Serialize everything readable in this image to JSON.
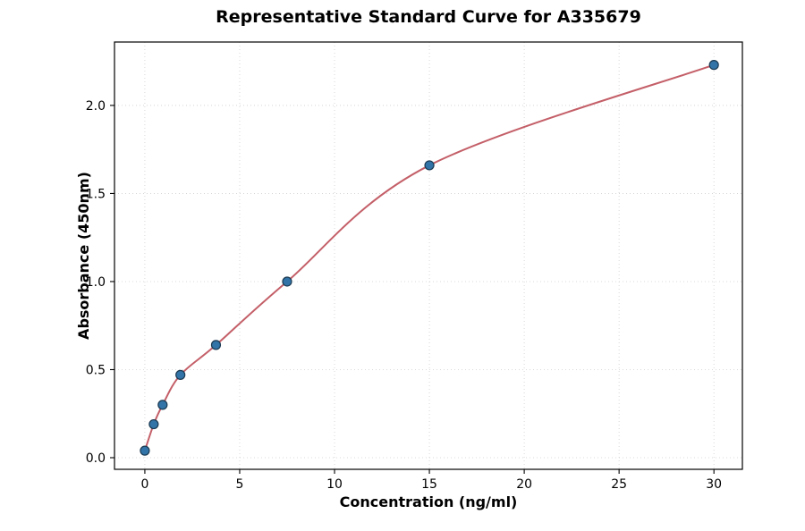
{
  "chart_data": {
    "type": "scatter",
    "title": "Representative Standard Curve for A335679",
    "xlabel": "Concentration (ng/ml)",
    "ylabel": "Absorbance (450nm)",
    "x": [
      0,
      0.469,
      0.938,
      1.875,
      3.75,
      7.5,
      15,
      30
    ],
    "y": [
      0.04,
      0.19,
      0.3,
      0.47,
      0.64,
      1.0,
      1.66,
      2.23
    ],
    "xticks": [
      0,
      5,
      10,
      15,
      20,
      25,
      30
    ],
    "yticks": [
      0.0,
      0.5,
      1.0,
      1.5,
      2.0
    ],
    "xlim": [
      -1.6,
      31.5
    ],
    "ylim": [
      -0.066,
      2.36
    ],
    "grid": true,
    "legend": "none",
    "trendline": {
      "type": "smooth-fit",
      "color": "#c45f68",
      "width": 2
    },
    "point_style": {
      "fill": "#3274a7",
      "edge": "#1b3a52",
      "radius": 5
    }
  }
}
